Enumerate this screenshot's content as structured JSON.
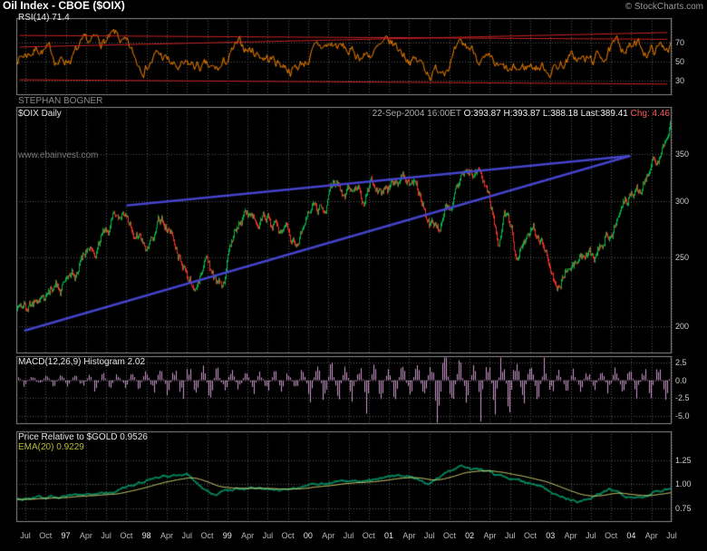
{
  "header": {
    "title": "Oil Index - CBOE ($OIX)",
    "copyright": "© StockCharts.com"
  },
  "watermarks": {
    "author": "STEPHAN BOGNER",
    "site": "www.ebainvest.com"
  },
  "quote": {
    "symbol": "$OIX Daily",
    "datetime": "22-Sep-2004 16:00ET",
    "ohlc": "O:393.87 H:393.87 L:388.18 Last:389.41",
    "change": "Chg: 4.46"
  },
  "colors": {
    "background": "#000000",
    "grid": "#585858",
    "panel_border": "#8a8a8a",
    "axis_text": "#cccccc"
  },
  "x_axis": {
    "labels": [
      "Jul",
      "Oct",
      "97",
      "Apr",
      "Jul",
      "Oct",
      "98",
      "Apr",
      "Jul",
      "Oct",
      "99",
      "Apr",
      "Jul",
      "Oct",
      "00",
      "Apr",
      "Jul",
      "Oct",
      "01",
      "Apr",
      "Jul",
      "Oct",
      "02",
      "Apr",
      "Jul",
      "Oct",
      "03",
      "Apr",
      "Jul",
      "Oct",
      "04",
      "Apr",
      "Jul"
    ]
  },
  "chart_data": [
    {
      "id": "rsi",
      "type": "line",
      "label": "RSI(14) 71.4",
      "last": 71.4,
      "color": "#ff8800",
      "scale": "linear",
      "ylim": [
        15,
        95
      ],
      "yticks": [
        70,
        50,
        30
      ],
      "ytick_labels": [
        "70",
        "50",
        "30"
      ],
      "anchors": [
        [
          0,
          55
        ],
        [
          0.03,
          68
        ],
        [
          0.06,
          48
        ],
        [
          0.09,
          62
        ],
        [
          0.12,
          70
        ],
        [
          0.15,
          74
        ],
        [
          0.18,
          42
        ],
        [
          0.21,
          60
        ],
        [
          0.24,
          38
        ],
        [
          0.27,
          45
        ],
        [
          0.3,
          35
        ],
        [
          0.33,
          66
        ],
        [
          0.36,
          60
        ],
        [
          0.39,
          50
        ],
        [
          0.42,
          42
        ],
        [
          0.45,
          62
        ],
        [
          0.48,
          68
        ],
        [
          0.51,
          55
        ],
        [
          0.54,
          60
        ],
        [
          0.57,
          66
        ],
        [
          0.6,
          52
        ],
        [
          0.63,
          36
        ],
        [
          0.66,
          58
        ],
        [
          0.69,
          64
        ],
        [
          0.72,
          40
        ],
        [
          0.75,
          34
        ],
        [
          0.78,
          48
        ],
        [
          0.81,
          42
        ],
        [
          0.84,
          55
        ],
        [
          0.87,
          48
        ],
        [
          0.9,
          62
        ],
        [
          0.93,
          68
        ],
        [
          0.96,
          60
        ],
        [
          1,
          71.4
        ]
      ],
      "noise": {
        "seed": 7,
        "amp": 11
      },
      "trendline_color": "#cc2222",
      "trendlines": [
        {
          "x": [
            0.005,
            0.995
          ],
          "y": [
            65,
            80
          ]
        },
        {
          "x": [
            0.005,
            0.995
          ],
          "y": [
            77,
            73
          ]
        },
        {
          "x": [
            0.005,
            0.995
          ],
          "y": [
            31,
            26.5
          ]
        }
      ]
    },
    {
      "id": "price",
      "type": "candlestick",
      "label": "$OIX Daily",
      "last": 389.41,
      "up_color": "#00b346",
      "down_color": "#f03022",
      "scale": "log",
      "ylim": [
        183,
        408
      ],
      "yticks": [
        350,
        300,
        250,
        200
      ],
      "ytick_labels": [
        "350",
        "300",
        "250",
        "200"
      ],
      "anchors": [
        [
          0,
          210
        ],
        [
          0.03,
          218
        ],
        [
          0.06,
          230
        ],
        [
          0.09,
          238
        ],
        [
          0.12,
          260
        ],
        [
          0.15,
          288
        ],
        [
          0.165,
          296
        ],
        [
          0.18,
          272
        ],
        [
          0.2,
          268
        ],
        [
          0.22,
          287
        ],
        [
          0.245,
          262
        ],
        [
          0.27,
          234
        ],
        [
          0.29,
          256
        ],
        [
          0.305,
          228
        ],
        [
          0.315,
          224
        ],
        [
          0.335,
          270
        ],
        [
          0.365,
          290
        ],
        [
          0.385,
          297
        ],
        [
          0.4,
          276
        ],
        [
          0.415,
          262
        ],
        [
          0.425,
          252
        ],
        [
          0.445,
          280
        ],
        [
          0.485,
          310
        ],
        [
          0.5,
          300
        ],
        [
          0.515,
          314
        ],
        [
          0.53,
          297
        ],
        [
          0.545,
          312
        ],
        [
          0.56,
          298
        ],
        [
          0.59,
          330
        ],
        [
          0.61,
          312
        ],
        [
          0.63,
          280
        ],
        [
          0.645,
          270
        ],
        [
          0.665,
          296
        ],
        [
          0.69,
          318
        ],
        [
          0.705,
          330
        ],
        [
          0.72,
          310
        ],
        [
          0.735,
          268
        ],
        [
          0.745,
          282
        ],
        [
          0.765,
          248
        ],
        [
          0.775,
          262
        ],
        [
          0.79,
          268
        ],
        [
          0.8,
          258
        ],
        [
          0.817,
          250
        ],
        [
          0.827,
          238
        ],
        [
          0.845,
          257
        ],
        [
          0.87,
          251
        ],
        [
          0.882,
          247
        ],
        [
          0.9,
          270
        ],
        [
          0.92,
          290
        ],
        [
          0.935,
          302
        ],
        [
          0.945,
          314
        ],
        [
          0.955,
          305
        ],
        [
          0.963,
          320
        ],
        [
          0.972,
          330
        ],
        [
          0.985,
          352
        ],
        [
          1,
          389.41
        ]
      ],
      "noise": {
        "seed": 11,
        "amp": 0.018
      },
      "trendline_color": "#4444cc",
      "trendline_width": 2.5,
      "trendlines": [
        {
          "x": [
            0.012,
            0.938
          ],
          "y": [
            197,
            348
          ]
        },
        {
          "x": [
            0.168,
            0.938
          ],
          "y": [
            296,
            348
          ]
        }
      ]
    },
    {
      "id": "macd",
      "type": "histogram",
      "label": "MACD(12,26,9) Histogram 2.02",
      "last": 2.02,
      "color": "#cc99cc",
      "scale": "linear",
      "ylim": [
        -6.2,
        3.4
      ],
      "yticks": [
        2.5,
        0,
        -2.5,
        -5
      ],
      "ytick_labels": [
        "2.5",
        "0.0",
        "-2.5",
        "-5.0"
      ],
      "envelope": [
        [
          0,
          0.5
        ],
        [
          0.1,
          0.9
        ],
        [
          0.18,
          1.3
        ],
        [
          0.27,
          2.3
        ],
        [
          0.34,
          1.4
        ],
        [
          0.42,
          1.8
        ],
        [
          0.47,
          2.9
        ],
        [
          0.55,
          2.0
        ],
        [
          0.6,
          2.4
        ],
        [
          0.645,
          4.9
        ],
        [
          0.7,
          2.4
        ],
        [
          0.75,
          4.3
        ],
        [
          0.8,
          2.2
        ],
        [
          0.86,
          1.5
        ],
        [
          0.92,
          1.8
        ],
        [
          1,
          2.2
        ]
      ],
      "noise": {
        "seed": 23,
        "cycles": 46
      }
    },
    {
      "id": "ratio",
      "type": "line+ema",
      "label": "Price Relative to $GOLD 0.9526",
      "ema_label": "EMA(20) 0.9229",
      "last": 0.9526,
      "ema_last": 0.9229,
      "color": "#00885e",
      "ema_color": "#e8e87a",
      "scale": "linear",
      "ylim": [
        0.608,
        1.552
      ],
      "yticks": [
        1.25,
        1.0,
        0.75
      ],
      "ytick_labels": [
        "1.25",
        "1.00",
        "0.75"
      ],
      "anchors": [
        [
          0,
          0.84
        ],
        [
          0.05,
          0.86
        ],
        [
          0.1,
          0.88
        ],
        [
          0.15,
          0.93
        ],
        [
          0.19,
          1.03
        ],
        [
          0.22,
          1.08
        ],
        [
          0.26,
          1.12
        ],
        [
          0.285,
          0.96
        ],
        [
          0.3,
          0.9
        ],
        [
          0.33,
          0.95
        ],
        [
          0.36,
          0.97
        ],
        [
          0.4,
          0.94
        ],
        [
          0.45,
          1.0
        ],
        [
          0.5,
          1.03
        ],
        [
          0.55,
          1.06
        ],
        [
          0.6,
          1.1
        ],
        [
          0.63,
          1.0
        ],
        [
          0.655,
          1.12
        ],
        [
          0.68,
          1.2
        ],
        [
          0.7,
          1.16
        ],
        [
          0.72,
          1.13
        ],
        [
          0.74,
          1.08
        ],
        [
          0.78,
          1.02
        ],
        [
          0.8,
          0.97
        ],
        [
          0.83,
          0.88
        ],
        [
          0.86,
          0.81
        ],
        [
          0.88,
          0.86
        ],
        [
          0.905,
          0.95
        ],
        [
          0.925,
          0.89
        ],
        [
          0.945,
          0.85
        ],
        [
          0.965,
          0.88
        ],
        [
          0.985,
          0.93
        ],
        [
          1,
          0.9526
        ]
      ],
      "noise": {
        "seed": 31,
        "amp": 0.02
      }
    }
  ]
}
